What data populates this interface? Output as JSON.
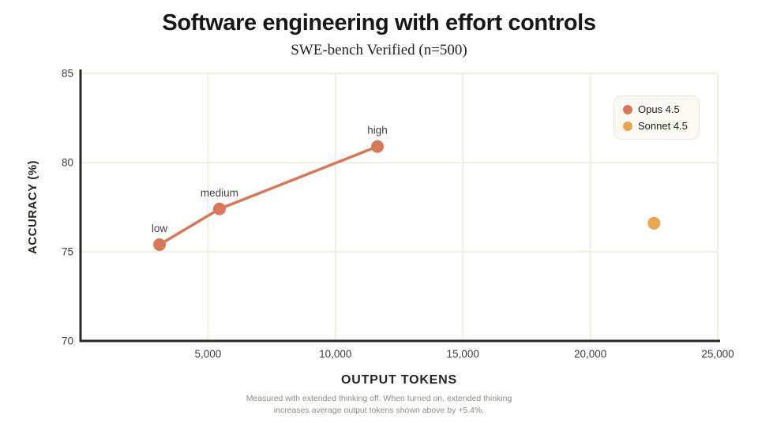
{
  "title": "Software engineering with effort controls",
  "subtitle": "SWE-bench Verified (n=500)",
  "legend": {
    "items": [
      {
        "label": "Opus 4.5"
      },
      {
        "label": "Sonnet 4.5"
      }
    ]
  },
  "footnote": {
    "line1": "Measured with extended thinking off. When turned on, extended thinking",
    "line2": "increases average output tokens shown above by +5.4%."
  },
  "colors": {
    "opus": "#D97757",
    "sonnet": "#EAA64F",
    "grid": "#F0EDE3",
    "axis": "#2A2825",
    "tick_text": "#3E3D3A",
    "point_label_text": "#45443F",
    "axis_title_text": "#262521",
    "footnote_text": "#8E8C84",
    "legend_bg": "#FAF9F3",
    "legend_border": "#E9E6DB",
    "background": "#FFFFFF"
  },
  "chart_data": {
    "type": "scatter",
    "title": "Software engineering with effort controls",
    "subtitle": "SWE-bench Verified (n=500)",
    "xlabel": "OUTPUT TOKENS",
    "ylabel": "ACCURACY (%)",
    "xlim": [
      0,
      25000
    ],
    "ylim": [
      70,
      85
    ],
    "x_ticks": [
      5000,
      10000,
      15000,
      20000,
      25000
    ],
    "x_tick_labels": [
      "5,000",
      "10,000",
      "15,000",
      "20,000",
      "25,000"
    ],
    "y_ticks": [
      70,
      75,
      80,
      85
    ],
    "y_tick_labels": [
      "70",
      "75",
      "80",
      "85"
    ],
    "grid": true,
    "legend_position": "top-right",
    "series": [
      {
        "name": "Opus 4.5",
        "color": "#D97757",
        "line": true,
        "points": [
          {
            "label": "low",
            "x": 3100,
            "y": 75.4
          },
          {
            "label": "medium",
            "x": 5450,
            "y": 77.4
          },
          {
            "label": "high",
            "x": 11650,
            "y": 80.9
          }
        ]
      },
      {
        "name": "Sonnet 4.5",
        "color": "#EAA64F",
        "line": false,
        "points": [
          {
            "label": "",
            "x": 22500,
            "y": 76.6
          }
        ]
      }
    ]
  }
}
